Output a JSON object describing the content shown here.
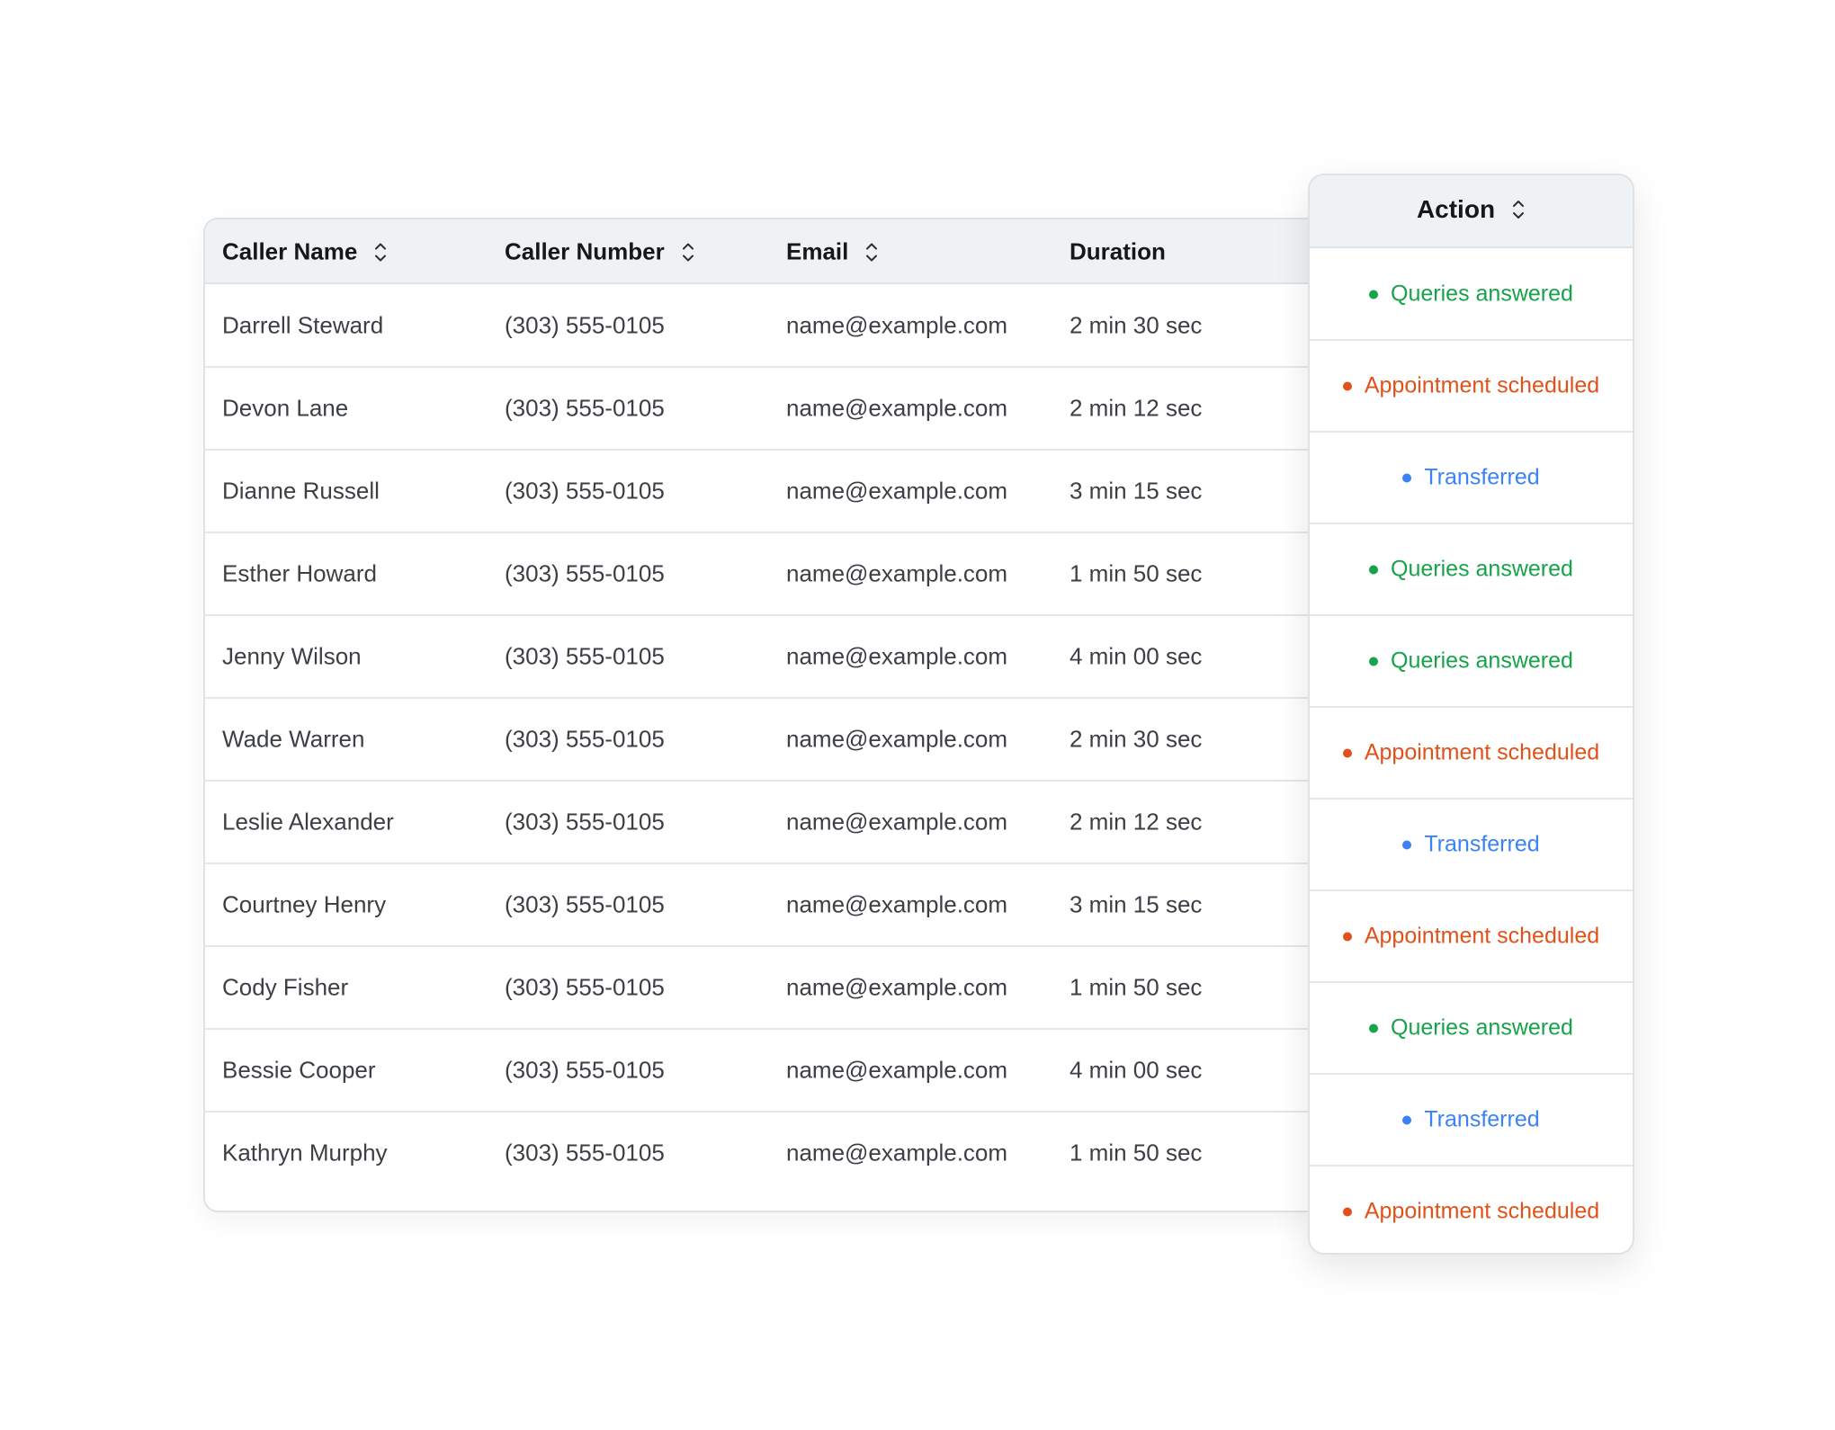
{
  "table": {
    "headers": [
      "Caller Name",
      "Caller Number",
      "Email",
      "Duration"
    ],
    "rows": [
      [
        "Darrell Steward",
        "(303) 555-0105",
        "name@example.com",
        "2 min 30 sec"
      ],
      [
        "Devon Lane",
        "(303) 555-0105",
        "name@example.com",
        "2 min 12 sec"
      ],
      [
        "Dianne Russell",
        "(303) 555-0105",
        "name@example.com",
        "3 min 15 sec"
      ],
      [
        "Esther Howard",
        "(303) 555-0105",
        "name@example.com",
        "1 min 50 sec"
      ],
      [
        "Jenny Wilson",
        "(303) 555-0105",
        "name@example.com",
        "4 min 00 sec"
      ],
      [
        "Wade Warren",
        "(303) 555-0105",
        "name@example.com",
        "2 min 30 sec"
      ],
      [
        "Leslie Alexander",
        "(303) 555-0105",
        "name@example.com",
        "2 min 12 sec"
      ],
      [
        "Courtney Henry",
        "(303) 555-0105",
        "name@example.com",
        "3 min 15 sec"
      ],
      [
        "Cody Fisher",
        "(303) 555-0105",
        "name@example.com",
        "1 min 50 sec"
      ],
      [
        "Bessie Cooper",
        "(303) 555-0105",
        "name@example.com",
        "4 min 00 sec"
      ],
      [
        "Kathryn Murphy",
        "(303) 555-0105",
        "name@example.com",
        "1 min 50 sec"
      ]
    ]
  },
  "action": {
    "header": "Action",
    "rows": [
      {
        "label": "Queries answered",
        "color": "#16a34a"
      },
      {
        "label": "Appointment scheduled",
        "color": "#e0521a"
      },
      {
        "label": "Transferred",
        "color": "#3b82f6"
      },
      {
        "label": "Queries answered",
        "color": "#16a34a"
      },
      {
        "label": "Queries answered",
        "color": "#16a34a"
      },
      {
        "label": "Appointment scheduled",
        "color": "#e0521a"
      },
      {
        "label": "Transferred",
        "color": "#3b82f6"
      },
      {
        "label": "Appointment scheduled",
        "color": "#e0521a"
      },
      {
        "label": "Queries answered",
        "color": "#16a34a"
      },
      {
        "label": "Transferred",
        "color": "#3b82f6"
      },
      {
        "label": "Appointment scheduled",
        "color": "#e0521a"
      }
    ]
  }
}
